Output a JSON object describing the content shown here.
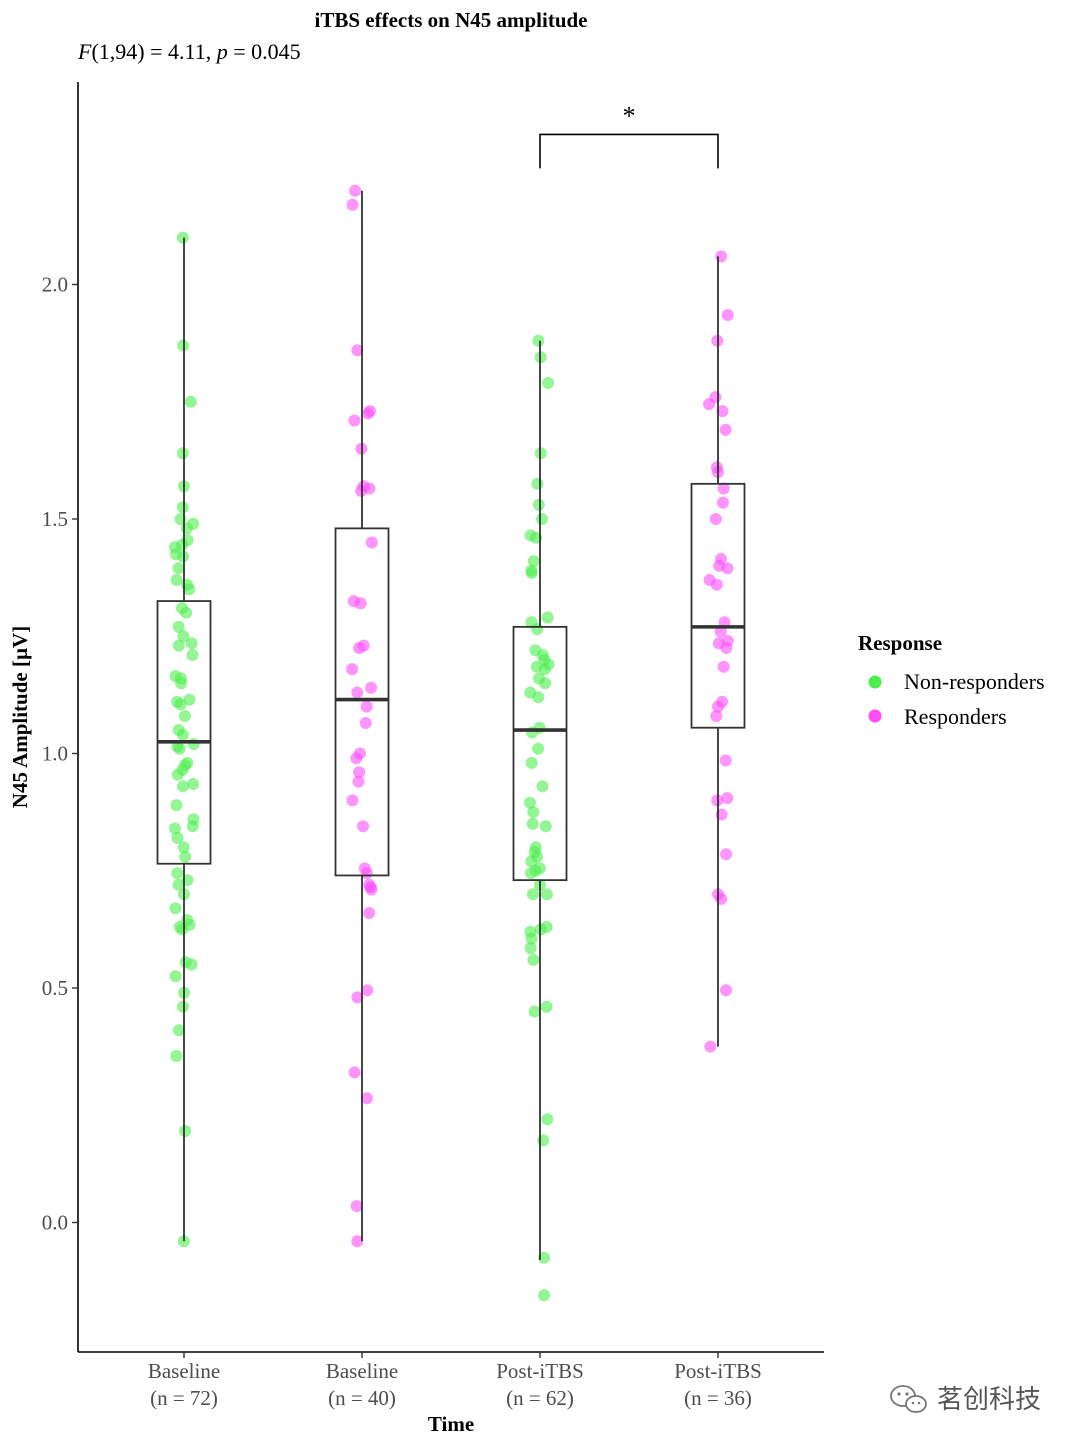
{
  "chart_data": {
    "type": "boxplot",
    "title": "iTBS effects on N45 amplitude",
    "subtitle": {
      "stat_symbol": "F",
      "stat_df": "(1,94) = 4.11, ",
      "p_symbol": "p",
      "p_text": " = 0.045"
    },
    "xlabel": "Time",
    "ylabel": "N45 Amplitude [µV]",
    "ylim": [
      -0.28,
      2.43
    ],
    "yticks": [
      0.0,
      0.5,
      1.0,
      1.5,
      2.0
    ],
    "ytick_labels": [
      "0.0",
      "0.5",
      "1.0",
      "1.5",
      "2.0"
    ],
    "grid": false,
    "legend": {
      "title": "Response",
      "placement": "right",
      "entries": [
        {
          "name": "Non-responders",
          "color": "#4cee4c"
        },
        {
          "name": "Responders",
          "color": "#ff4cff"
        }
      ]
    },
    "categories": [
      {
        "label": "Baseline",
        "n": "(n = 72)"
      },
      {
        "label": "Baseline",
        "n": "(n = 40)"
      },
      {
        "label": "Post-iTBS",
        "n": "(n = 62)"
      },
      {
        "label": "Post-iTBS",
        "n": "(n = 36)"
      }
    ],
    "boxes": [
      {
        "group": "Non-responders",
        "min": -0.04,
        "q1": 0.765,
        "median": 1.025,
        "q3": 1.325,
        "max": 2.1
      },
      {
        "group": "Responders",
        "min": -0.04,
        "q1": 0.74,
        "median": 1.115,
        "q3": 1.48,
        "max": 2.2
      },
      {
        "group": "Non-responders",
        "min": -0.08,
        "q1": 0.73,
        "median": 1.05,
        "q3": 1.27,
        "max": 1.88
      },
      {
        "group": "Responders",
        "min": 0.375,
        "q1": 1.055,
        "median": 1.27,
        "q3": 1.575,
        "max": 2.06
      }
    ],
    "points": [
      [
        -0.04,
        0.195,
        0.355,
        0.41,
        0.46,
        0.49,
        0.525,
        0.55,
        0.555,
        0.625,
        0.63,
        0.635,
        0.645,
        0.67,
        0.7,
        0.72,
        0.73,
        0.745,
        0.78,
        0.8,
        0.82,
        0.84,
        0.845,
        0.86,
        0.89,
        0.93,
        0.935,
        0.955,
        0.965,
        0.975,
        0.98,
        1.01,
        1.015,
        1.02,
        1.04,
        1.05,
        1.08,
        1.105,
        1.11,
        1.115,
        1.15,
        1.16,
        1.165,
        1.21,
        1.23,
        1.235,
        1.25,
        1.27,
        1.3,
        1.31,
        1.35,
        1.36,
        1.37,
        1.395,
        1.42,
        1.425,
        1.44,
        1.445,
        1.455,
        1.48,
        1.49,
        1.5,
        1.525,
        1.57,
        1.64,
        1.75,
        1.87,
        2.1
      ],
      [
        -0.04,
        0.035,
        0.265,
        0.32,
        0.48,
        0.495,
        0.66,
        0.71,
        0.715,
        0.72,
        0.745,
        0.755,
        0.845,
        0.9,
        0.94,
        0.96,
        0.99,
        1.0,
        1.065,
        1.1,
        1.13,
        1.14,
        1.18,
        1.225,
        1.23,
        1.32,
        1.325,
        1.45,
        1.56,
        1.565,
        1.57,
        1.65,
        1.71,
        1.725,
        1.73,
        1.86,
        2.17,
        2.2
      ],
      [
        -0.155,
        -0.075,
        0.175,
        0.22,
        0.45,
        0.46,
        0.56,
        0.585,
        0.605,
        0.62,
        0.625,
        0.63,
        0.7,
        0.7,
        0.72,
        0.745,
        0.75,
        0.755,
        0.77,
        0.78,
        0.79,
        0.8,
        0.845,
        0.85,
        0.875,
        0.895,
        0.93,
        0.98,
        1.01,
        1.045,
        1.055,
        1.12,
        1.13,
        1.15,
        1.16,
        1.18,
        1.185,
        1.19,
        1.2,
        1.21,
        1.22,
        1.265,
        1.28,
        1.29,
        1.385,
        1.39,
        1.41,
        1.46,
        1.465,
        1.5,
        1.53,
        1.575,
        1.64,
        1.79,
        1.845,
        1.88
      ],
      [
        0.375,
        0.495,
        0.69,
        0.7,
        0.785,
        0.87,
        0.9,
        0.905,
        0.985,
        1.08,
        1.1,
        1.11,
        1.185,
        1.225,
        1.235,
        1.24,
        1.26,
        1.28,
        1.36,
        1.37,
        1.395,
        1.4,
        1.415,
        1.5,
        1.535,
        1.565,
        1.6,
        1.61,
        1.69,
        1.73,
        1.745,
        1.76,
        1.88,
        1.935,
        2.06
      ]
    ],
    "significance": {
      "between": [
        2,
        3
      ],
      "label": "*",
      "y": 2.32
    }
  },
  "watermark": "茗创科技"
}
